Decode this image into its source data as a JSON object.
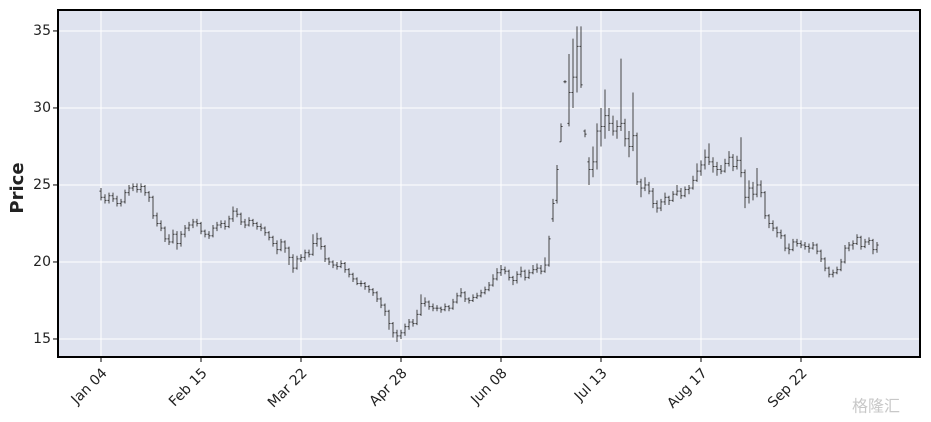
{
  "chart_data": {
    "type": "ohlc",
    "ylabel": "Price",
    "watermark": "格隆汇",
    "color": "#333333",
    "background": "#dfe3ef",
    "grid": true,
    "ylim": [
      13.83,
      36.36
    ],
    "yticks": [
      15,
      20,
      25,
      30,
      35
    ],
    "categories": [
      "Jan 04",
      null,
      null,
      null,
      null,
      null,
      null,
      null,
      null,
      null,
      null,
      null,
      null,
      null,
      null,
      null,
      null,
      null,
      null,
      null,
      null,
      null,
      null,
      null,
      null,
      "Feb 15",
      null,
      null,
      null,
      null,
      null,
      null,
      null,
      null,
      null,
      null,
      null,
      null,
      null,
      null,
      null,
      null,
      null,
      null,
      null,
      null,
      null,
      null,
      null,
      null,
      "Mar 22",
      null,
      null,
      null,
      null,
      null,
      null,
      null,
      null,
      null,
      null,
      null,
      null,
      null,
      null,
      null,
      null,
      null,
      null,
      null,
      null,
      null,
      null,
      null,
      null,
      "Apr 28",
      null,
      null,
      null,
      null,
      null,
      null,
      null,
      null,
      null,
      null,
      null,
      null,
      null,
      null,
      null,
      null,
      null,
      null,
      null,
      null,
      null,
      null,
      null,
      null,
      "Jun 08",
      null,
      null,
      null,
      null,
      null,
      null,
      null,
      null,
      null,
      null,
      null,
      null,
      null,
      null,
      null,
      null,
      null,
      null,
      null,
      null,
      null,
      null,
      null,
      null,
      "Jul 13",
      null,
      null,
      null,
      null,
      null,
      null,
      null,
      null,
      null,
      null,
      null,
      null,
      null,
      null,
      null,
      null,
      null,
      null,
      null,
      null,
      null,
      null,
      null,
      null,
      "Aug 17",
      null,
      null,
      null,
      null,
      null,
      null,
      null,
      null,
      null,
      null,
      null,
      null,
      null,
      null,
      null,
      null,
      null,
      null,
      null,
      null,
      null,
      null,
      null,
      null,
      "Sep 22",
      null,
      null,
      null,
      null,
      null,
      null,
      null,
      null,
      null,
      null,
      null,
      null,
      null,
      null,
      null,
      null,
      null,
      null,
      null
    ],
    "open": [
      24.6,
      24.2,
      24.0,
      24.3,
      24.1,
      23.8,
      23.9,
      24.5,
      24.8,
      24.9,
      24.7,
      24.9,
      24.5,
      24.2,
      23.0,
      22.5,
      22.2,
      21.5,
      21.3,
      21.8,
      21.2,
      21.8,
      22.2,
      22.4,
      22.6,
      22.5,
      22.0,
      21.8,
      21.7,
      22.2,
      22.4,
      22.5,
      22.3,
      22.8,
      23.3,
      23.1,
      22.6,
      22.4,
      22.7,
      22.5,
      22.3,
      22.2,
      21.9,
      21.6,
      21.2,
      20.8,
      21.3,
      20.9,
      20.3,
      19.6,
      20.2,
      20.3,
      20.6,
      20.5,
      21.2,
      21.5,
      21.0,
      20.2,
      20.0,
      19.8,
      19.7,
      19.9,
      19.5,
      19.2,
      18.9,
      18.6,
      18.6,
      18.4,
      18.2,
      18.0,
      17.6,
      17.2,
      16.8,
      16.0,
      15.4,
      15.2,
      15.4,
      15.8,
      16.1,
      16.0,
      16.6,
      17.3,
      17.4,
      17.1,
      17.0,
      17.0,
      16.9,
      17.1,
      17.0,
      17.4,
      17.8,
      18.0,
      17.6,
      17.5,
      17.7,
      17.8,
      18.0,
      18.2,
      18.5,
      18.9,
      19.3,
      19.5,
      19.4,
      19.0,
      18.8,
      19.2,
      19.4,
      19.0,
      19.3,
      19.5,
      19.6,
      19.4,
      19.8,
      22.8,
      24.0,
      27.8,
      31.7,
      29.0,
      31.0,
      32.0,
      34.0,
      28.5,
      26.5,
      26.0,
      26.5,
      28.5,
      28.8,
      29.5,
      29.0,
      28.5,
      28.8,
      29.0,
      28.0,
      27.5,
      28.2,
      25.2,
      24.8,
      25.0,
      24.6,
      23.8,
      23.5,
      23.9,
      24.2,
      24.0,
      24.4,
      24.6,
      24.3,
      24.7,
      24.8,
      25.3,
      25.9,
      26.3,
      26.8,
      26.5,
      26.2,
      26.0,
      25.9,
      26.4,
      26.8,
      26.2,
      26.6,
      25.8,
      24.2,
      24.8,
      24.4,
      25.0,
      24.5,
      23.0,
      22.5,
      22.2,
      21.9,
      21.7,
      20.9,
      20.8,
      21.3,
      21.2,
      21.1,
      21.0,
      20.9,
      21.1,
      20.7,
      20.2,
      19.6,
      19.2,
      19.3,
      19.5,
      20.0,
      20.9,
      21.1,
      21.2,
      21.6,
      21.0,
      21.3,
      21.4,
      20.8
    ],
    "high": [
      24.8,
      24.4,
      24.5,
      24.5,
      24.3,
      24.1,
      24.7,
      25.0,
      25.1,
      25.1,
      25.1,
      25.0,
      24.6,
      24.3,
      23.2,
      22.7,
      22.3,
      21.8,
      22.1,
      22.0,
      22.0,
      22.4,
      22.6,
      22.8,
      22.8,
      22.6,
      22.1,
      22.0,
      22.4,
      22.6,
      22.7,
      22.7,
      23.0,
      23.6,
      23.5,
      23.2,
      22.8,
      22.9,
      22.8,
      22.6,
      22.5,
      22.3,
      22.0,
      21.7,
      21.4,
      21.5,
      21.4,
      21.0,
      20.5,
      20.4,
      20.5,
      20.8,
      20.8,
      21.8,
      21.9,
      21.6,
      21.1,
      20.3,
      20.1,
      20.0,
      20.1,
      20.0,
      19.6,
      19.3,
      19.0,
      18.8,
      18.7,
      18.5,
      18.3,
      18.1,
      17.7,
      17.3,
      16.9,
      16.1,
      15.6,
      15.6,
      16.0,
      16.3,
      16.3,
      16.9,
      17.9,
      17.7,
      17.5,
      17.3,
      17.2,
      17.1,
      17.3,
      17.2,
      17.6,
      18.0,
      18.3,
      18.1,
      17.7,
      17.9,
      18.0,
      18.2,
      18.4,
      18.7,
      19.2,
      19.6,
      19.8,
      19.7,
      19.5,
      19.1,
      19.4,
      19.7,
      19.5,
      19.5,
      19.8,
      19.9,
      19.8,
      20.3,
      21.7,
      24.1,
      26.3,
      29.0,
      31.8,
      33.5,
      34.5,
      35.3,
      35.3,
      28.6,
      26.8,
      27.5,
      29.0,
      30.0,
      31.2,
      30.0,
      29.5,
      29.2,
      33.2,
      29.3,
      28.5,
      31.0,
      28.4,
      25.4,
      25.5,
      25.2,
      24.8,
      24.0,
      24.1,
      24.5,
      24.3,
      24.6,
      25.0,
      24.8,
      24.9,
      25.0,
      25.6,
      26.4,
      26.6,
      27.3,
      27.7,
      26.8,
      26.5,
      26.3,
      26.7,
      27.2,
      27.0,
      26.9,
      28.1,
      26.0,
      25.3,
      25.2,
      26.1,
      25.3,
      24.6,
      23.1,
      22.7,
      22.3,
      22.1,
      21.8,
      21.2,
      21.5,
      21.5,
      21.4,
      21.3,
      21.2,
      21.3,
      21.2,
      20.8,
      20.3,
      19.7,
      19.5,
      19.7,
      20.2,
      21.1,
      21.3,
      21.4,
      21.8,
      21.7,
      21.5,
      21.6,
      21.5,
      21.3
    ],
    "low": [
      24.0,
      23.8,
      23.8,
      23.9,
      23.6,
      23.6,
      23.8,
      24.3,
      24.6,
      24.5,
      24.5,
      24.3,
      23.9,
      22.8,
      22.3,
      22.0,
      21.3,
      21.1,
      21.2,
      20.8,
      21.0,
      21.6,
      22.0,
      22.2,
      22.3,
      21.8,
      21.6,
      21.5,
      21.6,
      22.0,
      22.2,
      22.1,
      22.2,
      22.6,
      22.9,
      22.4,
      22.2,
      22.3,
      22.3,
      22.1,
      22.0,
      21.7,
      21.4,
      21.0,
      20.5,
      20.7,
      20.6,
      19.8,
      19.3,
      19.5,
      20.0,
      20.1,
      20.3,
      20.4,
      21.0,
      20.8,
      20.0,
      19.8,
      19.6,
      19.5,
      19.6,
      19.3,
      19.0,
      18.7,
      18.5,
      18.4,
      18.2,
      18.0,
      17.8,
      17.4,
      17.0,
      16.5,
      15.6,
      15.1,
      14.8,
      15.0,
      15.2,
      15.6,
      15.8,
      15.9,
      16.5,
      17.1,
      16.9,
      16.8,
      16.8,
      16.7,
      16.8,
      16.8,
      16.9,
      17.3,
      17.7,
      17.4,
      17.3,
      17.4,
      17.6,
      17.7,
      17.9,
      18.1,
      18.4,
      18.8,
      19.1,
      19.2,
      18.8,
      18.5,
      18.6,
      19.0,
      18.8,
      18.9,
      19.2,
      19.3,
      19.2,
      19.3,
      19.7,
      22.6,
      23.8,
      27.8,
      31.6,
      28.8,
      30.0,
      31.0,
      31.3,
      28.1,
      25.0,
      25.5,
      26.0,
      27.5,
      28.0,
      28.5,
      28.2,
      28.0,
      28.5,
      27.5,
      26.8,
      27.2,
      25.0,
      24.2,
      24.6,
      24.4,
      23.5,
      23.2,
      23.3,
      23.7,
      23.7,
      23.9,
      24.3,
      24.1,
      24.2,
      24.4,
      24.7,
      25.2,
      25.6,
      26.0,
      26.3,
      25.8,
      25.6,
      25.7,
      25.8,
      26.2,
      25.9,
      26.0,
      25.5,
      23.5,
      23.8,
      24.0,
      24.2,
      24.2,
      22.8,
      22.2,
      22.0,
      21.6,
      21.5,
      20.7,
      20.5,
      20.7,
      21.0,
      20.9,
      20.8,
      20.6,
      20.8,
      20.5,
      20.0,
      19.4,
      19.0,
      19.0,
      19.2,
      19.4,
      19.9,
      20.7,
      20.8,
      21.1,
      20.8,
      20.9,
      21.1,
      20.5,
      20.6
    ],
    "close": [
      24.2,
      24.0,
      24.3,
      24.1,
      23.8,
      23.9,
      24.5,
      24.8,
      24.9,
      24.7,
      24.9,
      24.5,
      24.2,
      23.0,
      22.5,
      22.2,
      21.5,
      21.3,
      21.8,
      21.2,
      21.8,
      22.2,
      22.4,
      22.6,
      22.5,
      22.0,
      21.8,
      21.7,
      22.2,
      22.4,
      22.5,
      22.3,
      22.8,
      23.3,
      23.1,
      22.6,
      22.4,
      22.7,
      22.5,
      22.3,
      22.2,
      21.9,
      21.6,
      21.2,
      20.8,
      21.3,
      20.9,
      20.3,
      19.6,
      20.2,
      20.3,
      20.6,
      20.5,
      21.2,
      21.5,
      21.0,
      20.2,
      20.0,
      19.8,
      19.7,
      19.9,
      19.5,
      19.2,
      18.9,
      18.6,
      18.6,
      18.4,
      18.2,
      18.0,
      17.6,
      17.2,
      16.8,
      16.0,
      15.4,
      15.2,
      15.4,
      15.8,
      16.1,
      16.0,
      16.6,
      17.3,
      17.4,
      17.1,
      17.0,
      17.0,
      16.9,
      17.1,
      17.0,
      17.4,
      17.8,
      18.0,
      17.6,
      17.5,
      17.7,
      17.8,
      18.0,
      18.2,
      18.5,
      18.9,
      19.3,
      19.5,
      19.4,
      19.0,
      18.8,
      19.2,
      19.4,
      19.0,
      19.3,
      19.5,
      19.6,
      19.4,
      19.8,
      21.5,
      23.8,
      26.0,
      28.8,
      31.7,
      31.0,
      32.0,
      34.0,
      31.5,
      28.3,
      26.0,
      26.5,
      28.5,
      28.8,
      29.5,
      29.0,
      28.5,
      28.8,
      29.0,
      28.0,
      27.5,
      28.2,
      25.2,
      24.8,
      25.0,
      24.6,
      23.8,
      23.5,
      23.9,
      24.2,
      24.0,
      24.4,
      24.6,
      24.3,
      24.7,
      24.8,
      25.3,
      25.9,
      26.3,
      26.8,
      26.5,
      26.2,
      26.0,
      25.9,
      26.4,
      26.8,
      26.2,
      26.6,
      25.8,
      24.2,
      24.8,
      24.4,
      25.0,
      24.5,
      23.0,
      22.5,
      22.2,
      21.9,
      21.7,
      20.9,
      20.8,
      21.3,
      21.2,
      21.1,
      21.0,
      20.9,
      21.1,
      20.7,
      20.2,
      19.6,
      19.2,
      19.3,
      19.5,
      20.0,
      20.9,
      21.1,
      21.2,
      21.6,
      21.0,
      21.3,
      21.4,
      20.8,
      21.1
    ]
  }
}
